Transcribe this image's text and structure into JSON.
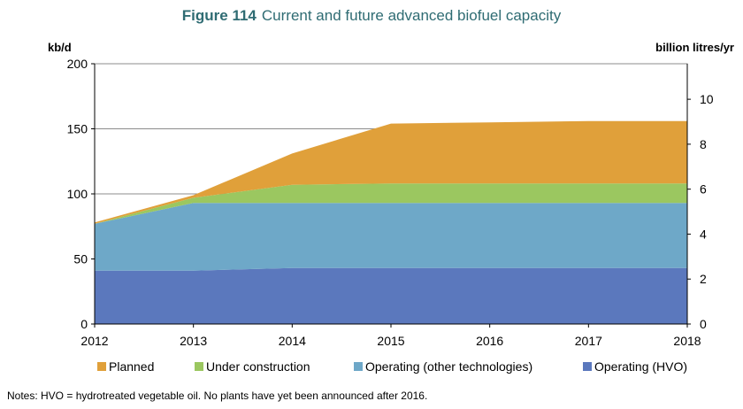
{
  "header": {
    "figure_label": "Figure 114",
    "title": "Current and future advanced biofuel capacity"
  },
  "axes": {
    "left_unit": "kb/d",
    "right_unit": "billion litres/yr"
  },
  "notes": "Notes: HVO = hydrotreated vegetable oil. No plants have yet been announced after 2016.",
  "chart_data": {
    "type": "area",
    "stacked": true,
    "x": [
      2012,
      2013,
      2014,
      2015,
      2016,
      2017,
      2018
    ],
    "xlim": [
      2012,
      2018
    ],
    "ylim": [
      0,
      200
    ],
    "y_ticks": [
      0,
      50,
      100,
      150,
      200
    ],
    "y2lim": [
      0,
      11.58
    ],
    "y2_ticks": [
      0,
      2,
      4,
      6,
      8,
      10
    ],
    "grid": true,
    "legend_position": "bottom",
    "series": [
      {
        "name": "Operating (HVO)",
        "color": "#5b78bd",
        "values": [
          41,
          41,
          43,
          43,
          43,
          43,
          43
        ]
      },
      {
        "name": "Operating (other technologies)",
        "color": "#6ea8c8",
        "values": [
          36,
          52,
          50,
          50,
          50,
          50,
          50
        ]
      },
      {
        "name": "Under construction",
        "color": "#9bc760",
        "values": [
          0,
          4,
          14,
          15,
          15,
          15,
          15
        ]
      },
      {
        "name": "Planned",
        "color": "#e0a03a",
        "values": [
          1,
          2,
          24,
          46,
          47,
          48,
          48
        ]
      }
    ],
    "legend_order": [
      "Planned",
      "Under construction",
      "Operating (other technologies)",
      "Operating (HVO)"
    ]
  }
}
